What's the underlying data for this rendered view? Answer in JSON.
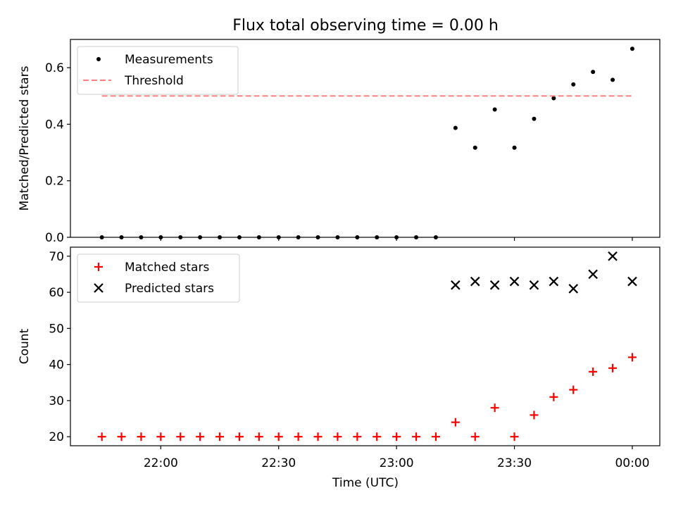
{
  "title": "Flux total observing time = 0.00 h",
  "chart_data": [
    {
      "type": "scatter",
      "ylabel": "Matched/Predicted stars",
      "ylim": [
        0,
        0.7
      ],
      "yticks": [
        0.0,
        0.2,
        0.4,
        0.6
      ],
      "ytick_labels": [
        "0.0",
        "0.2",
        "0.4",
        "0.6"
      ],
      "grid": false,
      "legend_position": "top-left",
      "series": [
        {
          "name": "Measurements",
          "marker": "dot",
          "color": "#000000",
          "x": [
            "21:45",
            "21:50",
            "21:55",
            "22:00",
            "22:05",
            "22:10",
            "22:15",
            "22:20",
            "22:25",
            "22:30",
            "22:35",
            "22:40",
            "22:45",
            "22:50",
            "22:55",
            "23:00",
            "23:05",
            "23:10",
            "23:15",
            "23:20",
            "23:25",
            "23:30",
            "23:35",
            "23:40",
            "23:45",
            "23:50",
            "23:55",
            "00:00"
          ],
          "y": [
            0,
            0,
            0,
            0,
            0,
            0,
            0,
            0,
            0,
            0,
            0,
            0,
            0,
            0,
            0,
            0,
            0,
            0,
            0.387,
            0.317,
            0.452,
            0.317,
            0.419,
            0.492,
            0.541,
            0.585,
            0.557,
            0.667
          ]
        },
        {
          "name": "Threshold",
          "style": "dashed-line",
          "color": "#ff8080",
          "x": [
            "21:45",
            "00:00"
          ],
          "y": [
            0.5,
            0.5
          ]
        }
      ]
    },
    {
      "type": "scatter",
      "xlabel": "Time (UTC)",
      "ylabel": "Count",
      "ylim": [
        17.5,
        72.5
      ],
      "yticks": [
        20,
        30,
        40,
        50,
        60,
        70
      ],
      "ytick_labels": [
        "20",
        "30",
        "40",
        "50",
        "60",
        "70"
      ],
      "xticks": [
        "22:00",
        "22:30",
        "23:00",
        "23:30",
        "00:00"
      ],
      "xtick_labels": [
        "22:00",
        "22:30",
        "23:00",
        "23:30",
        "00:00"
      ],
      "grid": false,
      "legend_position": "top-left",
      "series": [
        {
          "name": "Matched stars",
          "marker": "plus",
          "color": "#ff0000",
          "x": [
            "21:45",
            "21:50",
            "21:55",
            "22:00",
            "22:05",
            "22:10",
            "22:15",
            "22:20",
            "22:25",
            "22:30",
            "22:35",
            "22:40",
            "22:45",
            "22:50",
            "22:55",
            "23:00",
            "23:05",
            "23:10",
            "23:15",
            "23:20",
            "23:25",
            "23:30",
            "23:35",
            "23:40",
            "23:45",
            "23:50",
            "23:55",
            "00:00"
          ],
          "y": [
            20,
            20,
            20,
            20,
            20,
            20,
            20,
            20,
            20,
            20,
            20,
            20,
            20,
            20,
            20,
            20,
            20,
            20,
            24,
            20,
            28,
            20,
            26,
            31,
            33,
            38,
            39,
            42
          ]
        },
        {
          "name": "Predicted stars",
          "marker": "x",
          "color": "#000000",
          "x": [
            "23:15",
            "23:20",
            "23:25",
            "23:30",
            "23:35",
            "23:40",
            "23:45",
            "23:50",
            "23:55",
            "00:00"
          ],
          "y": [
            62,
            63,
            62,
            63,
            62,
            63,
            61,
            65,
            70,
            63
          ]
        }
      ]
    }
  ]
}
